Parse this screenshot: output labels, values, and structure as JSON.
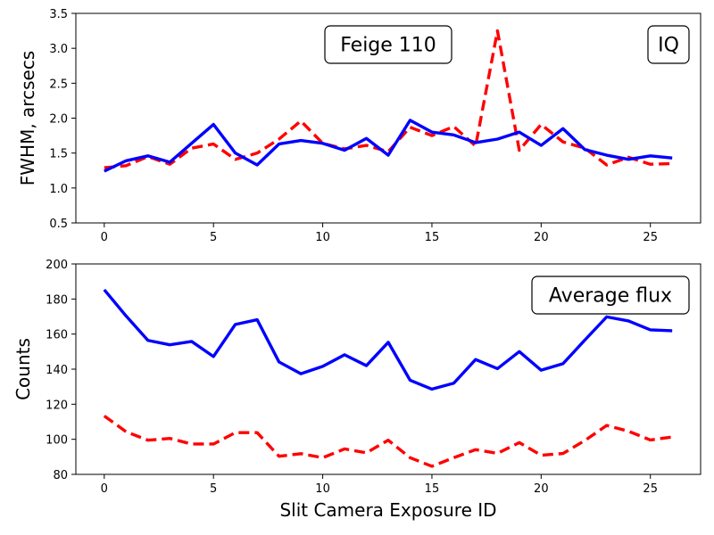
{
  "chart_data": [
    {
      "type": "line",
      "title": "",
      "xlabel": "",
      "ylabel": "FWHM, arcsecs",
      "xlim": [
        -1.3,
        27.3
      ],
      "ylim": [
        0.5,
        3.5
      ],
      "xticks": [
        0,
        5,
        10,
        15,
        20,
        25
      ],
      "yticks": [
        0.5,
        1.0,
        1.5,
        2.0,
        2.5,
        3.0,
        3.5
      ],
      "ytick_labels": [
        "0.5",
        "1.0",
        "1.5",
        "2.0",
        "2.5",
        "3.0",
        "3.5"
      ],
      "annotations": [
        "Feige 110",
        "IQ"
      ],
      "x": [
        0,
        1,
        2,
        3,
        4,
        5,
        6,
        7,
        8,
        9,
        10,
        11,
        12,
        13,
        14,
        15,
        16,
        17,
        18,
        19,
        20,
        21,
        22,
        23,
        24,
        25,
        26
      ],
      "series": [
        {
          "name": "solid",
          "color": "#0000ff",
          "style": "solid",
          "values": [
            1.24,
            1.39,
            1.46,
            1.37,
            1.64,
            1.91,
            1.5,
            1.33,
            1.63,
            1.68,
            1.64,
            1.54,
            1.71,
            1.47,
            1.97,
            1.8,
            1.76,
            1.65,
            1.7,
            1.8,
            1.61,
            1.85,
            1.55,
            1.47,
            1.41,
            1.46,
            1.43
          ]
        },
        {
          "name": "dashed",
          "color": "#ff0000",
          "style": "dashed",
          "values": [
            1.29,
            1.32,
            1.45,
            1.34,
            1.57,
            1.63,
            1.41,
            1.5,
            1.7,
            1.96,
            1.64,
            1.56,
            1.61,
            1.52,
            1.87,
            1.75,
            1.88,
            1.6,
            3.25,
            1.54,
            1.91,
            1.66,
            1.57,
            1.33,
            1.44,
            1.34,
            1.35
          ]
        }
      ]
    },
    {
      "type": "line",
      "title": "",
      "xlabel": "Slit Camera Exposure ID",
      "ylabel": "Counts",
      "xlim": [
        -1.3,
        27.3
      ],
      "ylim": [
        80,
        200
      ],
      "xticks": [
        0,
        5,
        10,
        15,
        20,
        25
      ],
      "yticks": [
        80,
        100,
        120,
        140,
        160,
        180,
        200
      ],
      "ytick_labels": [
        "80",
        "100",
        "120",
        "140",
        "160",
        "180",
        "200"
      ],
      "annotations": [
        "Average flux"
      ],
      "x": [
        0,
        1,
        2,
        3,
        4,
        5,
        6,
        7,
        8,
        9,
        10,
        11,
        12,
        13,
        14,
        15,
        16,
        17,
        18,
        19,
        20,
        21,
        22,
        23,
        24,
        25,
        26
      ],
      "series": [
        {
          "name": "solid",
          "color": "#0000ff",
          "style": "solid",
          "values": [
            185.3,
            170.3,
            156.4,
            153.9,
            155.8,
            147.2,
            165.5,
            168.2,
            144.1,
            137.4,
            141.6,
            148.2,
            142.0,
            155.3,
            133.7,
            128.6,
            132.0,
            145.5,
            140.3,
            150.0,
            139.4,
            143.1,
            156.6,
            169.8,
            167.5,
            162.4,
            161.9
          ]
        },
        {
          "name": "dashed",
          "color": "#ff0000",
          "style": "dashed",
          "values": [
            113.3,
            104.3,
            99.5,
            100.5,
            97.3,
            97.3,
            103.8,
            103.8,
            90.3,
            91.8,
            89.5,
            94.5,
            92.3,
            99.5,
            89.5,
            84.6,
            89.5,
            94.1,
            92.0,
            98.1,
            90.9,
            91.9,
            99.3,
            107.9,
            104.6,
            99.6,
            101.3
          ]
        }
      ]
    }
  ]
}
